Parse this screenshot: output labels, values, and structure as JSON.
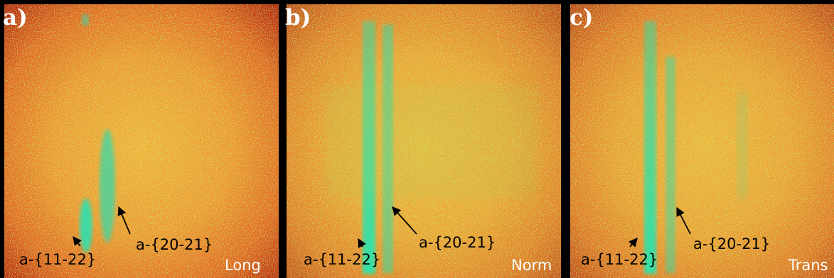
{
  "panels": [
    {
      "letter": "a)",
      "label_left": "a-{11-22}",
      "label_right": "a-{20-21}",
      "mode": "Long"
    },
    {
      "letter": "b)",
      "label_left": "a-{11-22}",
      "label_right": "a-{20-21}",
      "mode": "Norm"
    },
    {
      "letter": "c)",
      "label_left": "a-{11-22}",
      "label_right": "a-{20-21}",
      "mode": "Trans"
    }
  ],
  "colors": {
    "center": "#f3a030",
    "edge": "#b81e08",
    "streak": "#30e0a0",
    "frame": "#000000"
  }
}
